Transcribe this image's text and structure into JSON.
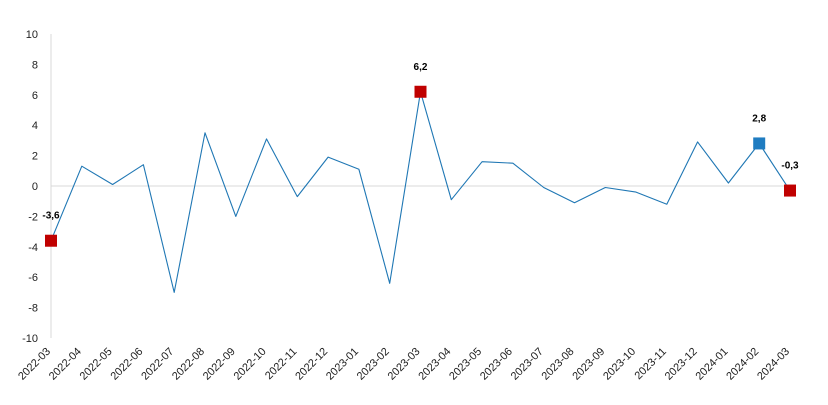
{
  "chart_data": {
    "type": "line",
    "title": "",
    "xlabel": "",
    "ylabel": "",
    "ylim": [
      -10,
      10
    ],
    "yticks": [
      -10,
      -8,
      -6,
      -4,
      -2,
      0,
      2,
      4,
      6,
      8,
      10
    ],
    "grid": false,
    "legend": "none",
    "categories": [
      "2022-03",
      "2022-04",
      "2022-05",
      "2022-06",
      "2022-07",
      "2022-08",
      "2022-09",
      "2022-10",
      "2022-11",
      "2022-12",
      "2023-01",
      "2023-02",
      "2023-03",
      "2023-04",
      "2023-05",
      "2023-06",
      "2023-07",
      "2023-08",
      "2023-09",
      "2023-10",
      "2023-11",
      "2023-12",
      "2024-01",
      "2024-02",
      "2024-03"
    ],
    "series": [
      {
        "values": [
          -3.6,
          1.3,
          0.1,
          1.4,
          -7.0,
          3.5,
          -2.0,
          3.1,
          -0.7,
          1.9,
          1.1,
          -6.4,
          6.2,
          -0.9,
          1.6,
          1.5,
          -0.1,
          -1.1,
          -0.1,
          -0.4,
          -1.2,
          2.9,
          0.2,
          2.8,
          -0.3
        ],
        "color": "#1f77b4"
      }
    ],
    "highlighted_points": [
      {
        "category": "2022-03",
        "value": -3.6,
        "label": "-3,6",
        "color": "#c00000"
      },
      {
        "category": "2023-03",
        "value": 6.2,
        "label": "6,2",
        "color": "#c00000"
      },
      {
        "category": "2024-02",
        "value": 2.8,
        "label": "2,8",
        "color": "#1f7cc1"
      },
      {
        "category": "2024-03",
        "value": -0.3,
        "label": "-0,3",
        "color": "#c00000"
      }
    ],
    "colors": {
      "line": "#1f77b4",
      "axis": "#d9d9d9",
      "zero_line": "#d9d9d9"
    }
  }
}
